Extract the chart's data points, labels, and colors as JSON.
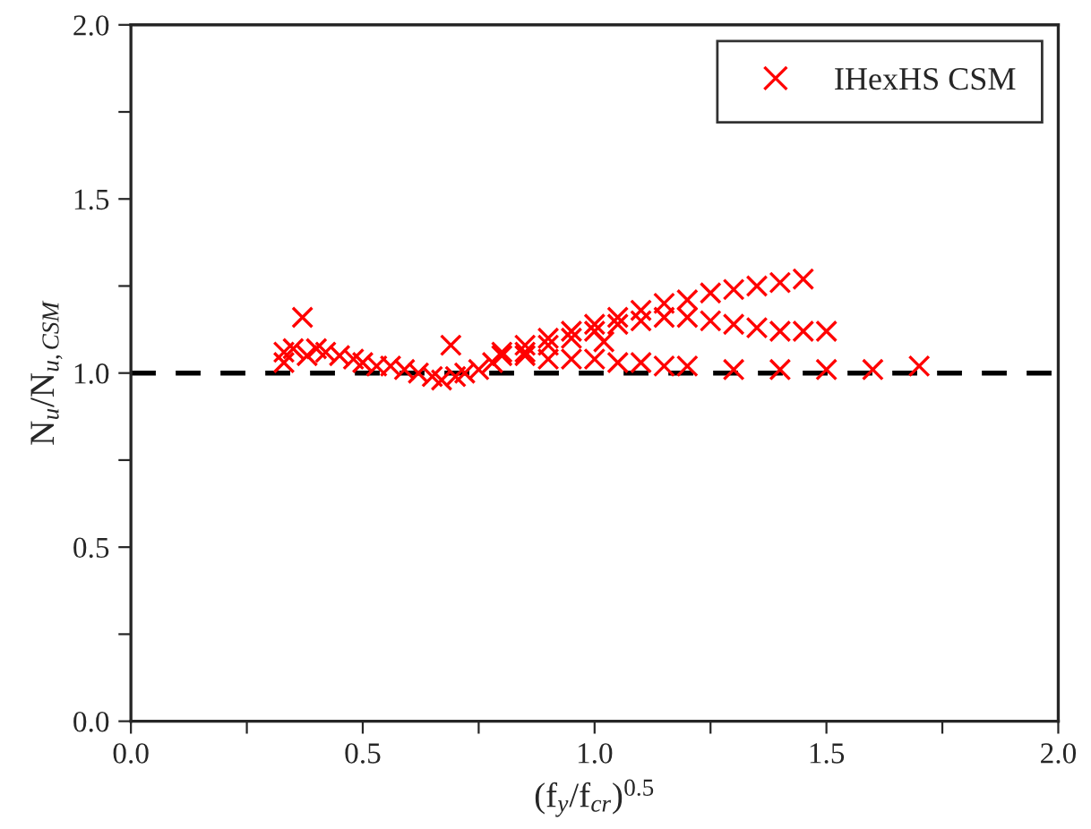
{
  "chart_data": {
    "type": "scatter",
    "xlabel": "(f$_{y}$/f$_{cr}$)$^{0.5}$",
    "ylabel": "N$_{u}$/N$_{u,CSM}$",
    "xlim": [
      0,
      2
    ],
    "ylim": [
      0,
      2
    ],
    "xticks": [
      {
        "value": 0,
        "label": "0.0"
      },
      {
        "value": 0.25,
        "label": null
      },
      {
        "value": 0.5,
        "label": "0.5"
      },
      {
        "value": 0.75,
        "label": null
      },
      {
        "value": 1,
        "label": "1.0"
      },
      {
        "value": 1.25,
        "label": null
      },
      {
        "value": 1.5,
        "label": "1.5"
      },
      {
        "value": 1.75,
        "label": null
      },
      {
        "value": 2,
        "label": "2.0"
      }
    ],
    "yticks": [
      {
        "value": 0,
        "label": "0.0"
      },
      {
        "value": 0.25,
        "label": null
      },
      {
        "value": 0.5,
        "label": "0.5"
      },
      {
        "value": 0.75,
        "label": null
      },
      {
        "value": 1,
        "label": "1.0"
      },
      {
        "value": 1.25,
        "label": null
      },
      {
        "value": 1.5,
        "label": "1.5"
      },
      {
        "value": 1.75,
        "label": null
      },
      {
        "value": 2,
        "label": "2.0"
      }
    ],
    "grid": false,
    "legend": "top right",
    "marker": "cross",
    "ref_lines": [
      {
        "axis": "y",
        "value": 1,
        "color": "#000000",
        "line_style": "dashed"
      }
    ],
    "series": [
      {
        "name": "IHexHS CSM",
        "color": "#ff0000",
        "x": [
          0.33,
          0.35,
          0.38,
          0.4,
          0.42,
          0.45,
          0.48,
          0.5,
          0.53,
          0.56,
          0.59,
          0.62,
          0.65,
          0.67,
          0.7,
          0.72,
          0.75,
          0.78,
          0.8,
          0.85,
          0.9,
          0.95,
          1.0,
          1.05,
          1.1,
          1.15,
          1.2,
          1.25,
          1.3,
          1.35,
          1.4,
          1.45,
          0.85,
          0.9,
          0.95,
          1.0,
          1.05,
          1.1,
          1.15,
          1.2,
          1.25,
          1.3,
          1.35,
          1.4,
          1.45,
          1.5,
          0.8,
          0.85,
          0.9,
          0.95,
          1.0,
          1.05,
          1.1,
          1.15,
          1.2,
          1.3,
          1.4,
          1.5,
          1.6,
          1.7,
          0.37,
          0.33,
          0.69,
          1.02
        ],
        "values": [
          1.06,
          1.07,
          1.05,
          1.07,
          1.06,
          1.05,
          1.04,
          1.03,
          1.02,
          1.02,
          1.01,
          1.0,
          0.99,
          0.98,
          0.99,
          1.0,
          1.01,
          1.03,
          1.06,
          1.08,
          1.1,
          1.12,
          1.14,
          1.16,
          1.18,
          1.2,
          1.21,
          1.23,
          1.24,
          1.25,
          1.26,
          1.27,
          1.06,
          1.08,
          1.1,
          1.12,
          1.14,
          1.15,
          1.16,
          1.16,
          1.15,
          1.14,
          1.13,
          1.12,
          1.12,
          1.12,
          1.05,
          1.05,
          1.04,
          1.04,
          1.04,
          1.03,
          1.03,
          1.02,
          1.02,
          1.01,
          1.01,
          1.01,
          1.01,
          1.02,
          1.16,
          1.03,
          1.08,
          1.09
        ]
      }
    ]
  }
}
